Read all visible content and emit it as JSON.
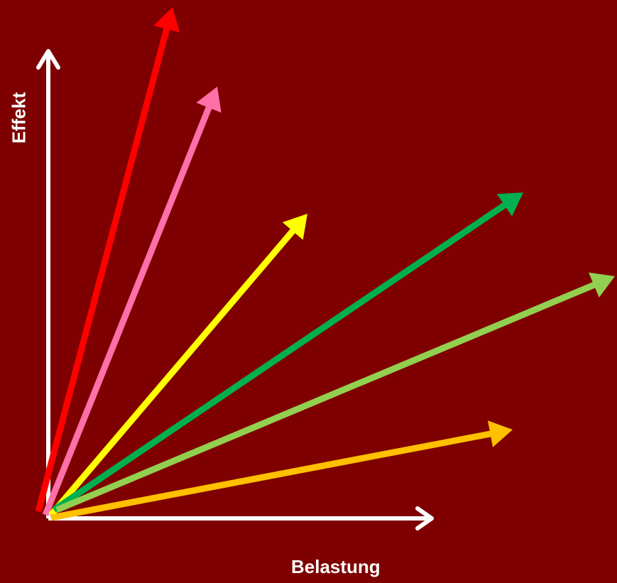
{
  "diagram": {
    "background": "#7f0000",
    "axes": {
      "color": "#ffffff",
      "x_label": "Belastung",
      "y_label": "Effekt"
    },
    "arrows": [
      {
        "id": "red",
        "color": "#ff0000"
      },
      {
        "id": "pink",
        "color": "#ff6fa8"
      },
      {
        "id": "yellow",
        "color": "#ffff00"
      },
      {
        "id": "dark-green",
        "color": "#00b050"
      },
      {
        "id": "light-green",
        "color": "#92d050"
      },
      {
        "id": "orange",
        "color": "#ffc000"
      }
    ]
  }
}
